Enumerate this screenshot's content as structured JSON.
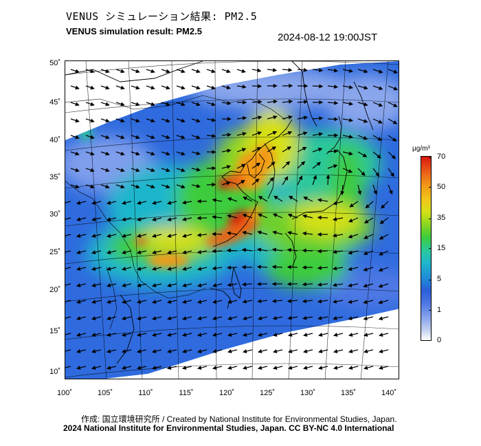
{
  "header": {
    "title_jp": "VENUS シミュレーション結果: PM2.5",
    "title_en": "VENUS simulation result: PM2.5",
    "timestamp": "2024-08-12 19:00JST"
  },
  "map": {
    "lat_labels": [
      "50˚",
      "45˚",
      "40˚",
      "35˚",
      "30˚",
      "25˚",
      "20˚",
      "15˚",
      "10˚"
    ],
    "lon_labels": [
      "100˚",
      "105˚",
      "110˚",
      "115˚",
      "120˚",
      "125˚",
      "130˚",
      "135˚",
      "140˚"
    ]
  },
  "colorbar": {
    "unit": "μg/m³",
    "labels": [
      "70",
      "50",
      "35",
      "15",
      "5",
      "1",
      "0"
    ]
  },
  "footer": {
    "credit_jp": "作成: 国立環境研究所 / Created by National Institute for Environmental Studies, Japan.",
    "copyright": "2024 National Institute for Environmental Studies, Japan. CC BY-NC 4.0 International"
  }
}
